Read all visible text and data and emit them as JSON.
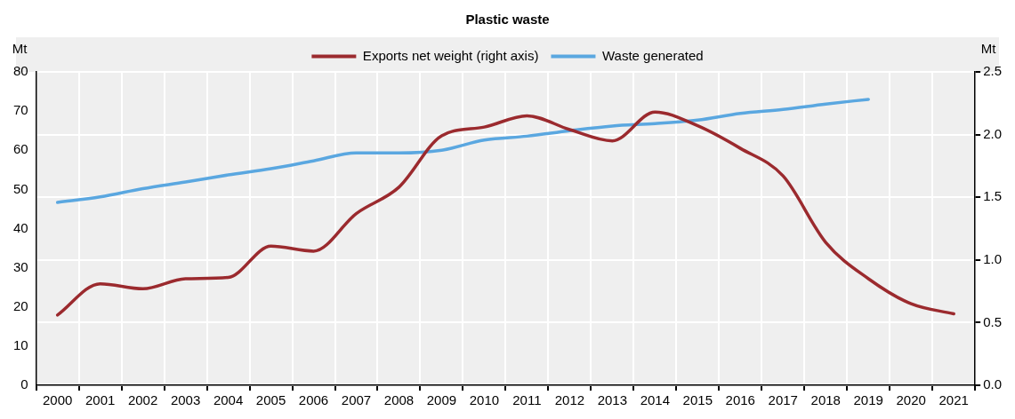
{
  "chart_data": {
    "type": "line",
    "title": "Plastic waste",
    "ylabel": "Mt",
    "y2label": "Mt",
    "categories": [
      "2000",
      "2001",
      "2002",
      "2003",
      "2004",
      "2005",
      "2006",
      "2007",
      "2008",
      "2009",
      "2010",
      "2011",
      "2012",
      "2013",
      "2014",
      "2015",
      "2016",
      "2017",
      "2018",
      "2019",
      "2020",
      "2021"
    ],
    "series": [
      {
        "name": "Exports net weight (right axis)",
        "color": "#9b2a2e",
        "axis": "y2",
        "values": [
          0.56,
          0.81,
          0.77,
          0.85,
          0.86,
          1.11,
          1.07,
          1.37,
          1.58,
          1.99,
          2.06,
          2.15,
          2.04,
          1.95,
          2.18,
          2.07,
          1.89,
          1.67,
          1.14,
          0.85,
          0.65,
          0.57
        ]
      },
      {
        "name": "Waste generated",
        "color": "#5aa7e0",
        "values": [
          46.7,
          48.1,
          50.2,
          51.9,
          53.7,
          55.3,
          57.3,
          59.3,
          59.3,
          60.0,
          62.6,
          63.6,
          65.0,
          66.2,
          66.8,
          67.7,
          69.4,
          70.4,
          71.8,
          73.0,
          null,
          null
        ]
      }
    ],
    "ylim": [
      0,
      80
    ],
    "yticks": [
      0,
      10,
      20,
      30,
      40,
      50,
      60,
      70,
      80
    ],
    "y2lim": [
      0,
      2.5
    ],
    "y2ticks": [
      {
        "value": 0,
        "label": "0.0"
      },
      {
        "value": 0.5,
        "label": "0.5"
      },
      {
        "value": 1,
        "label": "1.0"
      },
      {
        "value": 1.5,
        "label": "1.5"
      },
      {
        "value": 2,
        "label": "2.0"
      },
      {
        "value": 2.5,
        "label": "2.5"
      }
    ],
    "grid": true,
    "legend": "top",
    "marker": "none",
    "line_style": "solid"
  }
}
